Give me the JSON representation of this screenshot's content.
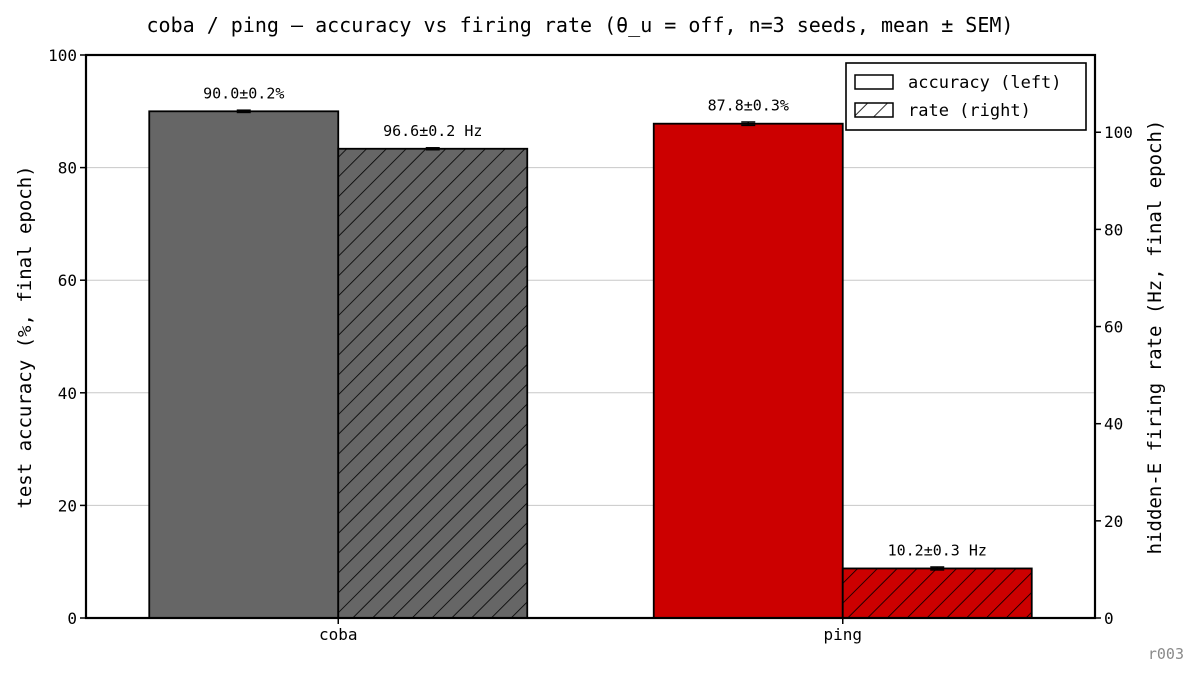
{
  "chart_data": {
    "type": "bar",
    "title": "coba / ping — accuracy vs firing rate (θ_u = off, n=3 seeds, mean ± SEM)",
    "categories": [
      "coba",
      "ping"
    ],
    "category_colors": [
      "#666666",
      "#cc0000"
    ],
    "series": [
      {
        "name": "accuracy (left)",
        "axis": "left",
        "hatch": false,
        "values": [
          90.0,
          87.8
        ],
        "errors": [
          0.2,
          0.3
        ],
        "value_labels": [
          "90.0±0.2%",
          "87.8±0.3%"
        ]
      },
      {
        "name": "rate (right)",
        "axis": "right",
        "hatch": true,
        "values": [
          96.6,
          10.2
        ],
        "errors": [
          0.2,
          0.3
        ],
        "value_labels": [
          "96.6±0.2 Hz",
          "10.2±0.3 Hz"
        ]
      }
    ],
    "ylabel_left": "test accuracy (%, final epoch)",
    "ylabel_right": "hidden-E firing rate (Hz, final epoch)",
    "ylim_left": [
      0,
      100
    ],
    "ylim_right": [
      0,
      115.9
    ],
    "yticks_left": [
      "0",
      "20",
      "40",
      "60",
      "80",
      "100"
    ],
    "yticks_right": [
      "0",
      "20",
      "40",
      "60",
      "80",
      "100"
    ],
    "grid": "horizontal",
    "legend_position": "top-right"
  },
  "footer": {
    "run_id": "r003"
  }
}
